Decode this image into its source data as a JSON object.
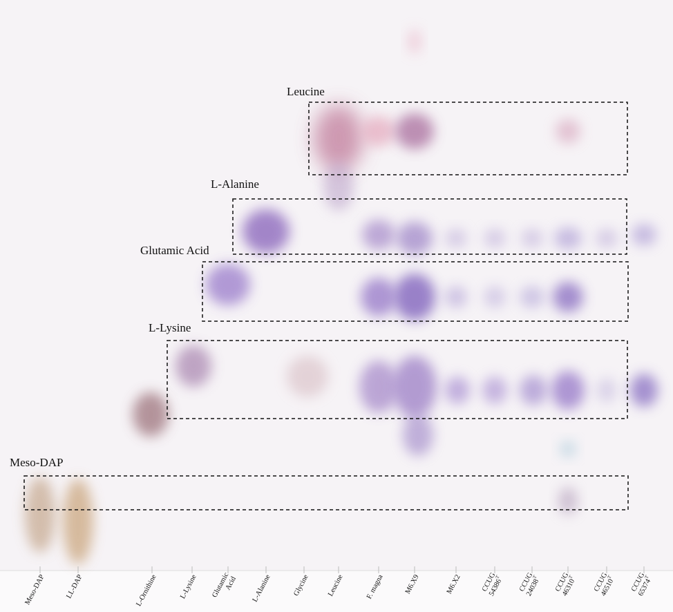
{
  "boxes": [
    {
      "label": "Leucine"
    },
    {
      "label": "L-Alanine"
    },
    {
      "label": "Glutamic Acid"
    },
    {
      "label": "L-Lysine"
    },
    {
      "label": "Meso-DAP"
    }
  ],
  "lanes": [
    {
      "line1": "Meso-DAP"
    },
    {
      "line1": "LL-DAP"
    },
    {
      "line1": "L-Ornithine"
    },
    {
      "line1": "L-Lysine"
    },
    {
      "line1": "Glutamic",
      "line2": "Acid"
    },
    {
      "line1": "L-Alanine"
    },
    {
      "line1": "Glycine"
    },
    {
      "line1": "Leucine"
    },
    {
      "line1": "F. magna"
    },
    {
      "line1": "M6.X9"
    },
    {
      "line1": "M6.X2"
    },
    {
      "line1": "CCUG",
      "line2": "54386",
      "sup": "T"
    },
    {
      "line1": "CCUG",
      "line2": "24038",
      "sup": "T"
    },
    {
      "line1": "CCUG",
      "line2": "46310",
      "sup": "T"
    },
    {
      "line1": "CCUG",
      "line2": "46510",
      "sup": "T"
    },
    {
      "line1": "CCUG",
      "line2": "65374",
      "sup": "T"
    }
  ]
}
